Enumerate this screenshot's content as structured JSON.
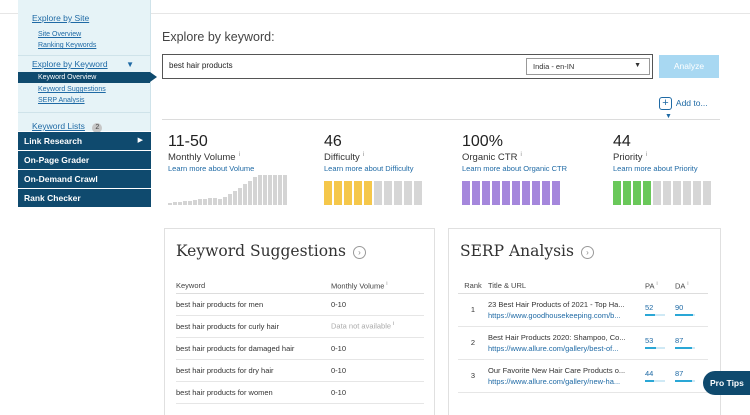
{
  "sidebar": {
    "explore_site": "Explore by Site",
    "site_overview": "Site Overview",
    "ranking_keywords": "Ranking Keywords",
    "explore_keyword": "Explore by Keyword",
    "keyword_overview": "Keyword Overview",
    "keyword_suggestions": "Keyword Suggestions",
    "serp_analysis": "SERP Analysis",
    "keyword_lists": "Keyword Lists",
    "keyword_lists_count": "2",
    "link_research": "Link Research",
    "on_page_grader": "On-Page Grader",
    "on_demand_crawl": "On-Demand Crawl",
    "rank_checker": "Rank Checker"
  },
  "main": {
    "title": "Explore by keyword:",
    "search_value": "best hair products",
    "locale": "India - en-IN",
    "analyze_label": "Analyze",
    "add_to_label": "Add to..."
  },
  "metrics": {
    "volume": {
      "value": "11-50",
      "label": "Monthly Volume",
      "link": "Learn more about Volume"
    },
    "difficulty": {
      "value": "46",
      "label": "Difficulty",
      "link": "Learn more about Difficulty",
      "level": 0.46,
      "color": "#f5c74a"
    },
    "ctr": {
      "value": "100%",
      "label": "Organic CTR",
      "link": "Learn more about Organic CTR",
      "level": 1.0,
      "color": "#a587dc"
    },
    "priority": {
      "value": "44",
      "label": "Priority",
      "link": "Learn more about Priority",
      "level": 0.44,
      "color": "#6ac85a"
    }
  },
  "keyword_suggestions": {
    "title": "Keyword Suggestions",
    "col_keyword": "Keyword",
    "col_volume": "Monthly Volume",
    "rows": [
      {
        "keyword": "best hair products for men",
        "volume": "0-10"
      },
      {
        "keyword": "best hair products for curly hair",
        "volume": "Data not available"
      },
      {
        "keyword": "best hair products for damaged hair",
        "volume": "0-10"
      },
      {
        "keyword": "best hair products for dry hair",
        "volume": "0-10"
      },
      {
        "keyword": "best hair products for women",
        "volume": "0-10"
      }
    ]
  },
  "serp_analysis": {
    "title": "SERP Analysis",
    "col_rank": "Rank",
    "col_title": "Title & URL",
    "col_pa": "PA",
    "col_da": "DA",
    "rows": [
      {
        "rank": "1",
        "title": "23 Best Hair Products of 2021 - Top Ha...",
        "url": "https://www.goodhousekeeping.com/b...",
        "pa": "52",
        "da": "90"
      },
      {
        "rank": "2",
        "title": "Best Hair Products 2020: Shampoo, Co...",
        "url": "https://www.allure.com/gallery/best-of...",
        "pa": "53",
        "da": "87"
      },
      {
        "rank": "3",
        "title": "Our Favorite New Hair Care Products o...",
        "url": "https://www.allure.com/gallery/new-ha...",
        "pa": "44",
        "da": "87"
      }
    ]
  },
  "pro_tips": "Pro Tips"
}
